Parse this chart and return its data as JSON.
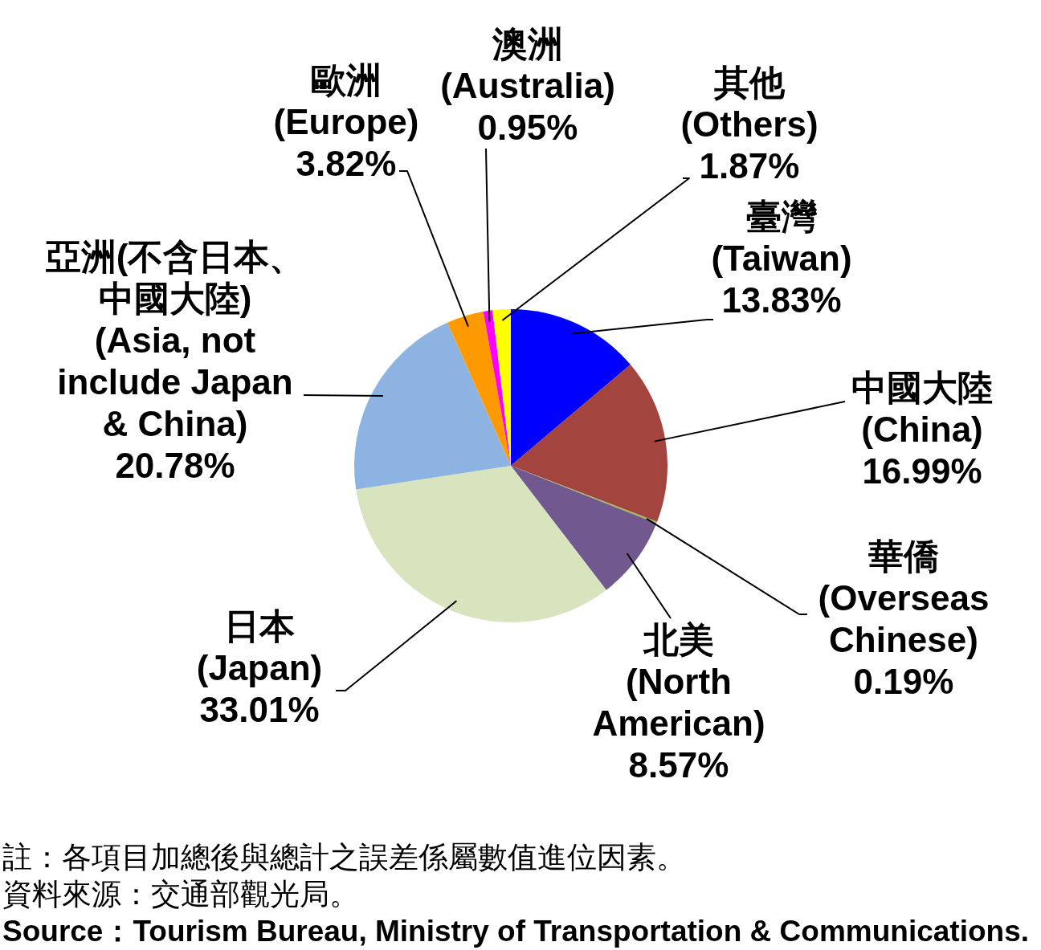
{
  "chart_data": {
    "type": "pie",
    "categories": [
      "臺灣\n(Taiwan)",
      "中國大陸\n(China)",
      "華僑\n(Overseas\nChinese)",
      "北美\n(North\nAmerican)",
      "日本\n(Japan)",
      "亞洲(不含日本、中國大陸)\n(Asia, not\ninclude Japan\n& China)",
      "歐洲\n(Europe)",
      "澳洲\n(Australia)",
      "其他\n(Others)"
    ],
    "values": [
      13.83,
      16.99,
      0.19,
      8.57,
      33.01,
      20.78,
      3.82,
      0.95,
      1.87
    ],
    "colors": [
      "#0000ff",
      "#a4443f",
      "#9bbb59",
      "#71588f",
      "#d7e4bd",
      "#8db3e2",
      "#ff9900",
      "#ff00ff",
      "#ffff00"
    ],
    "value_labels": [
      "13.83%",
      "16.99%",
      "0.19%",
      "8.57%",
      "33.01%",
      "20.78%",
      "3.82%",
      "0.95%",
      "1.87%"
    ],
    "annotations": [
      "註：各項目加總後與總計之誤差係屬數值進位因素。",
      "資料來源：交通部觀光局。",
      "Source：Tourism Bureau, Ministry of Transportation & Communications."
    ]
  }
}
